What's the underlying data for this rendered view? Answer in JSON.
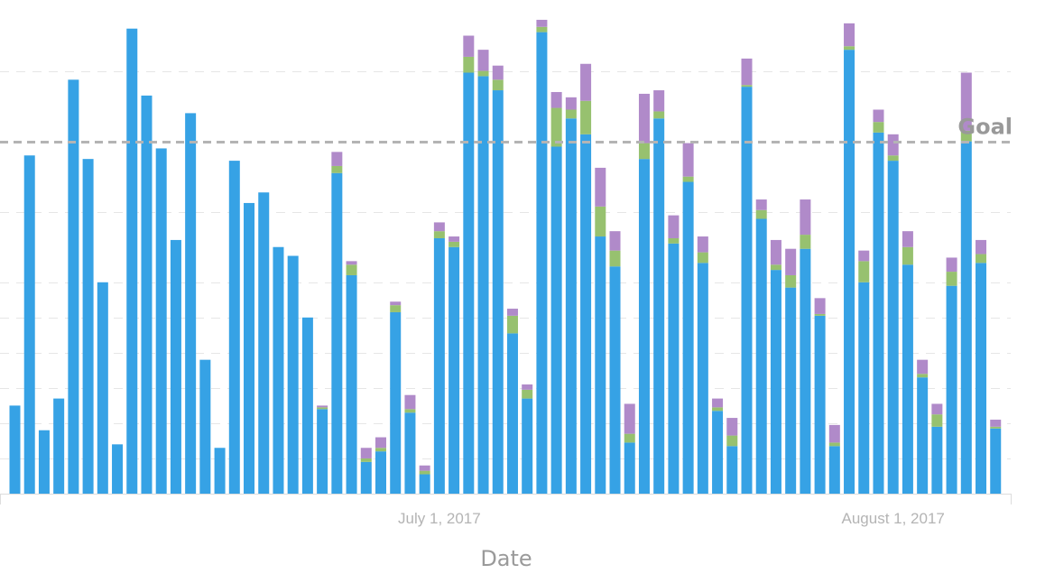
{
  "chart_data": {
    "type": "bar",
    "stacked": true,
    "xlabel": "Date",
    "ylabel": "",
    "x_tick_labels": [
      {
        "label": "July 1, 2017",
        "category_index": 29
      },
      {
        "label": "August 1, 2017",
        "category_index": 60
      }
    ],
    "ylim": [
      0,
      13.5
    ],
    "grid": true,
    "goal": {
      "label": "Goal",
      "value": 10
    },
    "colors": {
      "series_1": "#36a2e5",
      "series_2": "#97c16f",
      "series_3": "#b08ac9",
      "goal_line": "#b4b4b4",
      "grid": "#e6e6e6",
      "axis": "#dddddd"
    },
    "series": [
      {
        "values": [
          2.5,
          9.6,
          1.8,
          2.7,
          11.75,
          9.5,
          6.0,
          1.4,
          13.2,
          11.3,
          9.8,
          7.2,
          10.8,
          3.8,
          1.3,
          9.45,
          8.25,
          8.55,
          7.0,
          6.75,
          5.0,
          2.4,
          9.1,
          6.2,
          0.9,
          1.2,
          5.15,
          2.3,
          0.55,
          7.25,
          7.0,
          11.95,
          11.85,
          11.45,
          4.55,
          2.7,
          13.1,
          9.85,
          10.65,
          10.2,
          7.3,
          6.45,
          1.45,
          9.5,
          10.65,
          7.1,
          8.85,
          6.55,
          2.35,
          1.35,
          11.55,
          7.8,
          6.35,
          5.85,
          6.95,
          5.05,
          1.35,
          12.6,
          6.0,
          10.25,
          9.45,
          6.5,
          3.3,
          1.9,
          5.9,
          10.0,
          6.55,
          1.85
        ],
        "values_note": ""
      },
      {
        "values": [
          0,
          0,
          0,
          0,
          0,
          0,
          0,
          0,
          0,
          0,
          0,
          0,
          0,
          0,
          0,
          0,
          0,
          0,
          0,
          0,
          0,
          0.05,
          0.2,
          0.3,
          0.1,
          0.1,
          0.2,
          0.1,
          0.1,
          0.2,
          0.15,
          0.45,
          0.15,
          0.3,
          0.5,
          0.25,
          0.15,
          1.1,
          0.25,
          0.95,
          0.85,
          0.45,
          0.25,
          0.45,
          0.2,
          0.15,
          0.15,
          0.3,
          0.1,
          0.3,
          0.05,
          0.25,
          0.15,
          0.35,
          0.4,
          0.05,
          0.1,
          0.1,
          0.6,
          0.3,
          0.15,
          0.5,
          0.1,
          0.35,
          0.4,
          0.3,
          0.25,
          0.05
        ]
      },
      {
        "values": [
          0,
          0,
          0,
          0,
          0,
          0,
          0,
          0,
          0,
          0,
          0,
          0,
          0,
          0,
          0,
          0,
          0,
          0,
          0,
          0,
          0,
          0.05,
          0.4,
          0.1,
          0.3,
          0.3,
          0.1,
          0.4,
          0.15,
          0.25,
          0.15,
          0.6,
          0.6,
          0.4,
          0.2,
          0.15,
          0.2,
          0.45,
          0.35,
          1.05,
          1.1,
          0.55,
          0.85,
          1.4,
          0.6,
          0.65,
          0.95,
          0.45,
          0.25,
          0.5,
          0.75,
          0.3,
          0.7,
          0.75,
          1.0,
          0.45,
          0.5,
          0.65,
          0.3,
          0.35,
          0.6,
          0.45,
          0.4,
          0.3,
          0.4,
          1.65,
          0.4,
          0.2
        ]
      }
    ]
  }
}
